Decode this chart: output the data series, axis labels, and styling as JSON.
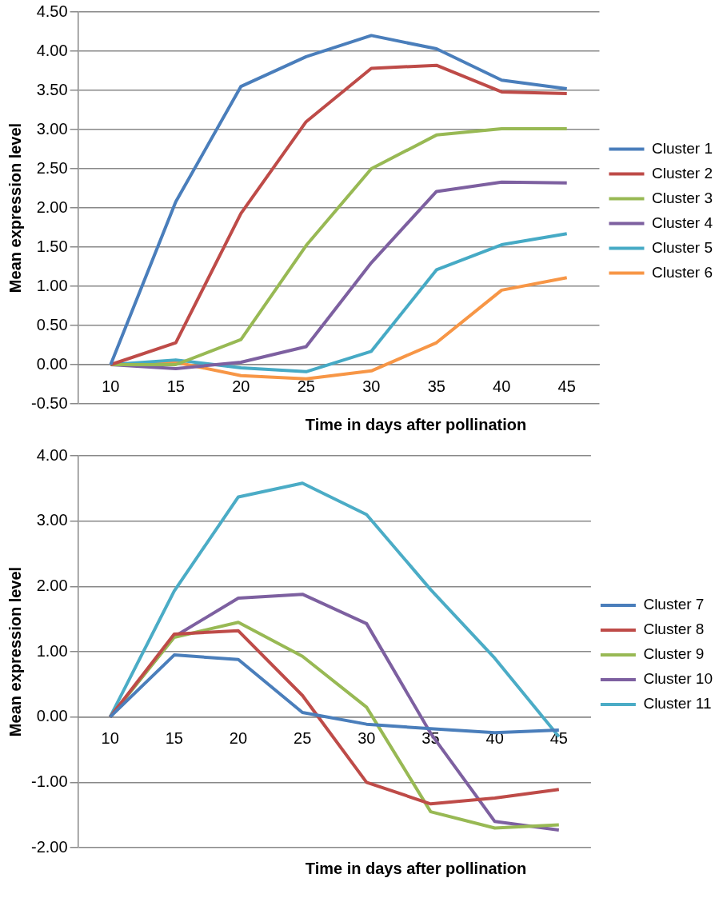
{
  "chart_data": [
    {
      "type": "line",
      "xlabel": "Time in days after pollination",
      "ylabel": "Mean expression level",
      "categories": [
        "10",
        "15",
        "20",
        "25",
        "30",
        "35",
        "40",
        "45"
      ],
      "ylim": [
        -0.5,
        4.5
      ],
      "yticks": [
        {
          "value": -0.5,
          "label": "-0.50"
        },
        {
          "value": 0,
          "label": "0.00"
        },
        {
          "value": 0.5,
          "label": "0.50"
        },
        {
          "value": 1,
          "label": "1.00"
        },
        {
          "value": 1.5,
          "label": "1.50"
        },
        {
          "value": 2,
          "label": "2.00"
        },
        {
          "value": 2.5,
          "label": "2.50"
        },
        {
          "value": 3,
          "label": "3.00"
        },
        {
          "value": 3.5,
          "label": "3.50"
        },
        {
          "value": 4,
          "label": "4.00"
        },
        {
          "value": 4.5,
          "label": "4.50"
        }
      ],
      "grid": "y",
      "legend": "right",
      "marker": "none",
      "line_style": "solid",
      "series": [
        {
          "name": "Cluster 1",
          "color": "#4a7ebb",
          "values": [
            0,
            2.08,
            3.55,
            3.93,
            4.2,
            4.03,
            3.63,
            3.52
          ]
        },
        {
          "name": "Cluster 2",
          "color": "#be4b48",
          "values": [
            0,
            0.28,
            1.93,
            3.1,
            3.78,
            3.82,
            3.48,
            3.46
          ]
        },
        {
          "name": "Cluster 3",
          "color": "#98b954",
          "values": [
            0,
            0,
            0.32,
            1.52,
            2.5,
            2.93,
            3.01,
            3.01
          ]
        },
        {
          "name": "Cluster 4",
          "color": "#7d60a0",
          "values": [
            0,
            -0.05,
            0.03,
            0.23,
            1.3,
            2.21,
            2.33,
            2.32
          ]
        },
        {
          "name": "Cluster 5",
          "color": "#46aac5",
          "values": [
            0,
            0.06,
            -0.04,
            -0.09,
            0.17,
            1.21,
            1.53,
            1.67
          ]
        },
        {
          "name": "Cluster 6",
          "color": "#f79646",
          "values": [
            0,
            0.03,
            -0.14,
            -0.18,
            -0.08,
            0.28,
            0.95,
            1.11
          ]
        }
      ]
    },
    {
      "type": "line",
      "xlabel": "Time in days after pollination",
      "ylabel": "Mean expression level",
      "categories": [
        "10",
        "15",
        "20",
        "25",
        "30",
        "35",
        "40",
        "45"
      ],
      "ylim": [
        -2,
        4
      ],
      "yticks": [
        {
          "value": -2,
          "label": "-2.00"
        },
        {
          "value": -1,
          "label": "-1.00"
        },
        {
          "value": 0,
          "label": "0.00"
        },
        {
          "value": 1,
          "label": "1.00"
        },
        {
          "value": 2,
          "label": "2.00"
        },
        {
          "value": 3,
          "label": "3.00"
        },
        {
          "value": 4,
          "label": "4.00"
        }
      ],
      "grid": "y",
      "legend": "right",
      "marker": "none",
      "line_style": "solid",
      "series": [
        {
          "name": "Cluster 7",
          "color": "#4a7ebb",
          "values": [
            0,
            0.95,
            0.88,
            0.07,
            -0.11,
            -0.18,
            -0.24,
            -0.2
          ]
        },
        {
          "name": "Cluster 8",
          "color": "#be4b48",
          "values": [
            0,
            1.27,
            1.32,
            0.33,
            -1,
            -1.33,
            -1.24,
            -1.11
          ]
        },
        {
          "name": "Cluster 9",
          "color": "#98b954",
          "values": [
            0,
            1.22,
            1.45,
            0.93,
            0.15,
            -1.45,
            -1.7,
            -1.65
          ]
        },
        {
          "name": "Cluster 10",
          "color": "#7d60a0",
          "values": [
            0,
            1.23,
            1.82,
            1.88,
            1.43,
            -0.25,
            -1.6,
            -1.73
          ]
        },
        {
          "name": "Cluster 11",
          "color": "#4bacc6",
          "values": [
            0,
            1.93,
            3.37,
            3.58,
            3.1,
            1.95,
            0.9,
            -0.3
          ]
        }
      ]
    }
  ]
}
